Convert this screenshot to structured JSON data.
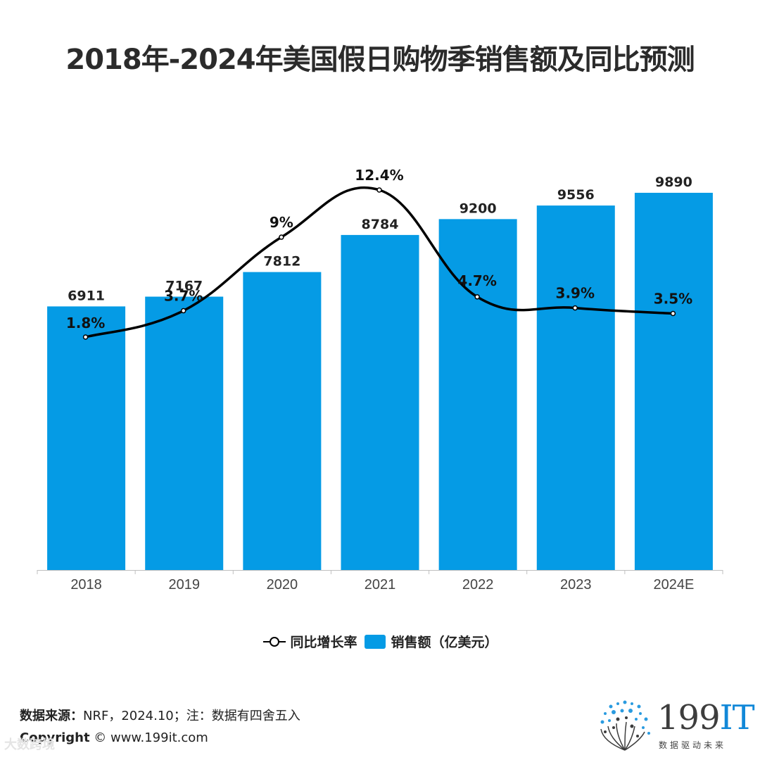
{
  "title": "2018年-2024年美国假日购物季销售额及同比预测",
  "chart_data": {
    "type": "bar",
    "categories": [
      "2018",
      "2019",
      "2020",
      "2021",
      "2022",
      "2023",
      "2024E"
    ],
    "series": [
      {
        "name": "销售额（亿美元）",
        "type": "bar",
        "values": [
          6911,
          7167,
          7812,
          8784,
          9200,
          9556,
          9890
        ],
        "labels": [
          "6911",
          "7167",
          "7812",
          "8784",
          "9200",
          "9556",
          "9890"
        ],
        "color": "#059be5"
      },
      {
        "name": "同比增长率",
        "type": "line",
        "values": [
          1.8,
          3.7,
          9,
          12.4,
          4.7,
          3.9,
          3.5
        ],
        "labels": [
          "1.8%",
          "3.7%",
          "9%",
          "12.4%",
          "4.7%",
          "3.9%",
          "3.5%"
        ],
        "color": "#000000"
      }
    ],
    "bar_axis_range": [
      0,
      10500
    ],
    "line_axis_range": [
      1.8,
      12.4
    ],
    "legend": [
      "同比增长率",
      "销售额（亿美元）"
    ],
    "legend_position": "bottom"
  },
  "legend": {
    "line_label": "同比增长率",
    "bar_label": "销售额（亿美元）"
  },
  "footer": {
    "source_label": "数据来源：",
    "source_text": "NRF，2024.10；注：数据有四舍五入",
    "copyright_label": "Copyright",
    "copyright_text": " ©  www.199it.com"
  },
  "logo": {
    "brand_num": "199",
    "brand_it": "IT",
    "slogan": "数据驱动未来"
  },
  "watermark": "大数跨境"
}
